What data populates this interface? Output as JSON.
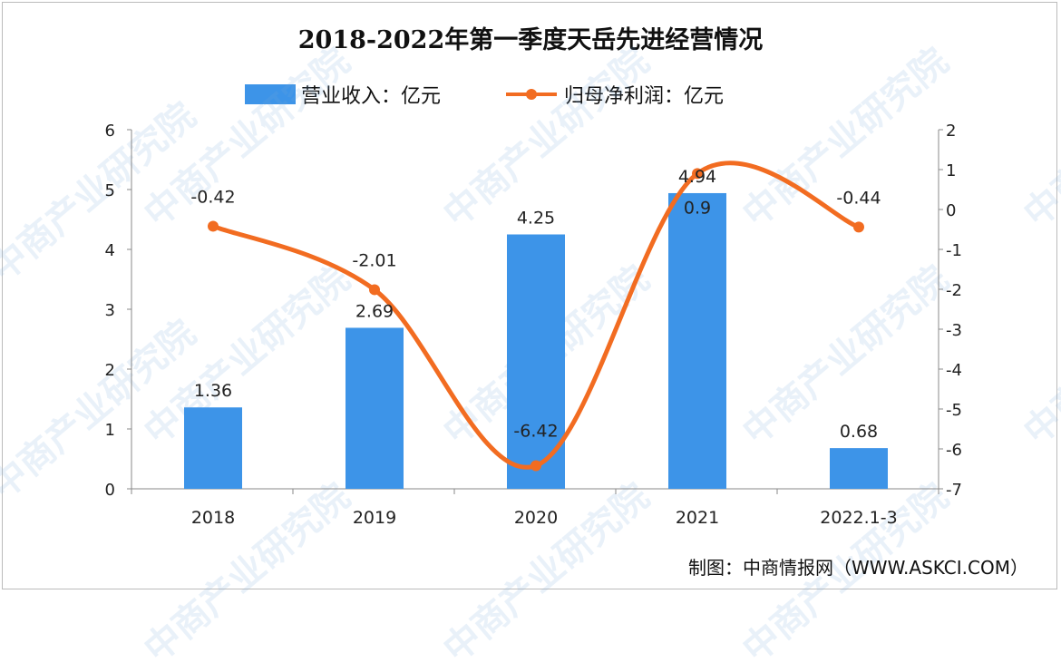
{
  "watermark": "中商产业研究院",
  "footer": "制图：中商情报网（WWW.ASKCI.COM）",
  "chart_data": {
    "type": "bar+line",
    "title": "2018-2022年第一季度天岳先进经营情况",
    "categories": [
      "2018",
      "2019",
      "2020",
      "2021",
      "2022.1-3"
    ],
    "series": [
      {
        "name": "营业收入：亿元",
        "type": "bar",
        "axis": "left",
        "color": "#3d94e8",
        "values": [
          1.36,
          2.69,
          4.25,
          4.94,
          0.68
        ],
        "labels": [
          "1.36",
          "2.69",
          "4.25",
          "4.94",
          "0.68"
        ]
      },
      {
        "name": "归母净利润：亿元",
        "type": "line",
        "smooth": true,
        "axis": "right",
        "color": "#f26c21",
        "values": [
          -0.42,
          -2.01,
          -6.42,
          0.9,
          -0.44
        ],
        "labels": [
          "-0.42",
          "-2.01",
          "-6.42",
          "0.9",
          "-0.44"
        ]
      }
    ],
    "y_left": {
      "ylim": [
        0,
        6
      ],
      "ticks": [
        "0",
        "1",
        "2",
        "3",
        "4",
        "5",
        "6"
      ]
    },
    "y_right": {
      "ylim": [
        -7,
        2
      ],
      "ticks": [
        "-7",
        "-6",
        "-5",
        "-4",
        "-3",
        "-2",
        "-1",
        "0",
        "1",
        "2"
      ]
    },
    "grid": false,
    "legend": "top"
  }
}
